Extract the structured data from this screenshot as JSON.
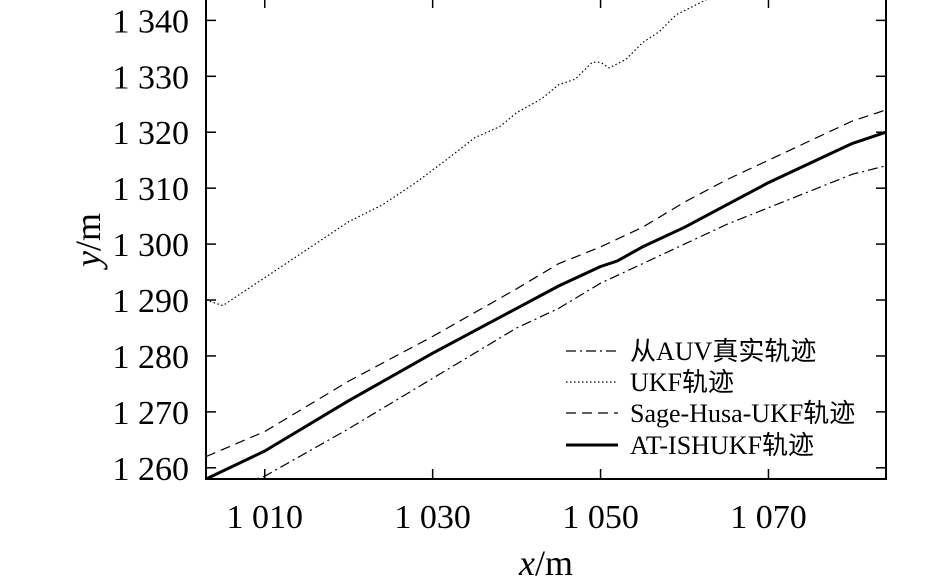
{
  "chart_data": {
    "type": "line",
    "title": "",
    "xlabel": "x/m",
    "xlabel_var": "x",
    "xlabel_unit": "/m",
    "ylabel": "y/m",
    "ylabel_var": "y",
    "ylabel_unit": "/m",
    "xlim": [
      1003,
      1084
    ],
    "ylim": [
      1258,
      1344
    ],
    "x_ticks": [
      1010,
      1030,
      1050,
      1070
    ],
    "x_tick_labels": [
      "1 010",
      "1 030",
      "1 050",
      "1 070"
    ],
    "y_ticks": [
      1260,
      1270,
      1280,
      1290,
      1300,
      1310,
      1320,
      1330,
      1340
    ],
    "y_tick_labels": [
      "1 260",
      "1 270",
      "1 280",
      "1 290",
      "1 300",
      "1 310",
      "1 320",
      "1 330",
      "1 340"
    ],
    "grid": false,
    "legend_position": "bottom-right",
    "series": [
      {
        "name": "从AUV真实轨迹",
        "style": "dashdot",
        "color": "#000000",
        "points": [
          [
            1003,
            1255.0
          ],
          [
            1010,
            1258.5
          ],
          [
            1020,
            1267.0
          ],
          [
            1030,
            1276.0
          ],
          [
            1035,
            1280.5
          ],
          [
            1040,
            1285.0
          ],
          [
            1045,
            1288.5
          ],
          [
            1050,
            1293.0
          ],
          [
            1055,
            1296.5
          ],
          [
            1060,
            1300.0
          ],
          [
            1065,
            1303.5
          ],
          [
            1070,
            1306.5
          ],
          [
            1075,
            1309.5
          ],
          [
            1080,
            1312.5
          ],
          [
            1084,
            1314.0
          ]
        ]
      },
      {
        "name": "UKF轨迹",
        "style": "dotted",
        "color": "#000000",
        "points": [
          [
            1003,
            1290.0
          ],
          [
            1005,
            1289.0
          ],
          [
            1008,
            1292.0
          ],
          [
            1012,
            1296.0
          ],
          [
            1016,
            1300.0
          ],
          [
            1020,
            1304.0
          ],
          [
            1024,
            1307.0
          ],
          [
            1028,
            1311.0
          ],
          [
            1032,
            1315.5
          ],
          [
            1035,
            1319.0
          ],
          [
            1038,
            1321.0
          ],
          [
            1040,
            1323.5
          ],
          [
            1043,
            1326.0
          ],
          [
            1045,
            1328.5
          ],
          [
            1047,
            1329.5
          ],
          [
            1049,
            1332.5
          ],
          [
            1050,
            1332.5
          ],
          [
            1051,
            1331.5
          ],
          [
            1053,
            1333.0
          ],
          [
            1055,
            1336.0
          ],
          [
            1057,
            1338.0
          ],
          [
            1059,
            1341.0
          ],
          [
            1061,
            1342.5
          ],
          [
            1063,
            1344.0
          ]
        ]
      },
      {
        "name": "Sage-Husa-UKF轨迹",
        "style": "dashed",
        "color": "#000000",
        "points": [
          [
            1003,
            1262.0
          ],
          [
            1010,
            1266.5
          ],
          [
            1020,
            1275.5
          ],
          [
            1030,
            1283.5
          ],
          [
            1040,
            1292.0
          ],
          [
            1045,
            1296.5
          ],
          [
            1050,
            1299.5
          ],
          [
            1055,
            1303.0
          ],
          [
            1060,
            1307.5
          ],
          [
            1065,
            1311.5
          ],
          [
            1070,
            1315.0
          ],
          [
            1075,
            1318.5
          ],
          [
            1080,
            1322.0
          ],
          [
            1084,
            1324.0
          ]
        ]
      },
      {
        "name": "AT-ISHUKF轨迹",
        "style": "solid-thick",
        "color": "#000000",
        "points": [
          [
            1003,
            1258.0
          ],
          [
            1010,
            1263.0
          ],
          [
            1020,
            1272.0
          ],
          [
            1030,
            1280.5
          ],
          [
            1040,
            1288.5
          ],
          [
            1045,
            1292.5
          ],
          [
            1050,
            1296.0
          ],
          [
            1052,
            1297.0
          ],
          [
            1055,
            1299.5
          ],
          [
            1060,
            1303.0
          ],
          [
            1065,
            1307.0
          ],
          [
            1070,
            1311.0
          ],
          [
            1075,
            1314.5
          ],
          [
            1080,
            1318.0
          ],
          [
            1084,
            1320.0
          ]
        ]
      }
    ]
  }
}
